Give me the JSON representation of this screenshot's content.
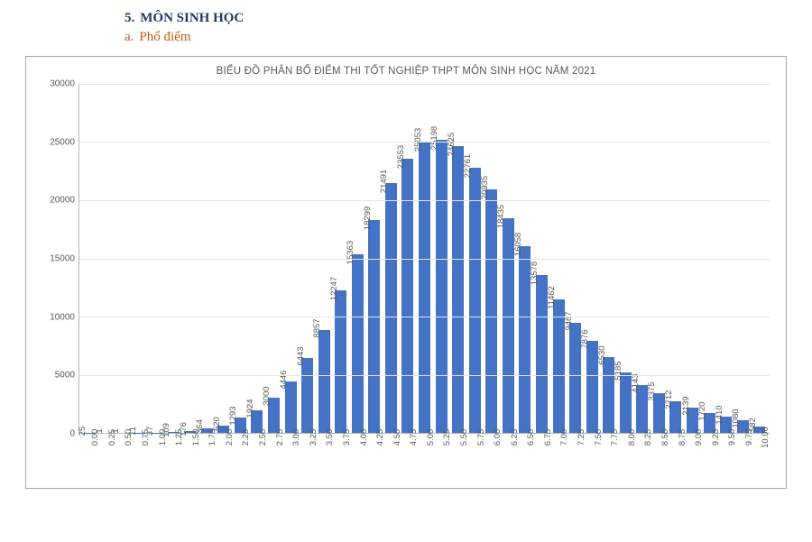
{
  "heading": {
    "number": "5.",
    "title": "MÔN SINH HỌC",
    "sub_letter": "a.",
    "sub_title": "Phổ điểm"
  },
  "chart": {
    "type": "bar",
    "title": "BIỂU ĐỒ PHÂN BỐ ĐIỂM THI TỐT NGHIỆP THPT MÔN SINH HỌC NĂM 2021",
    "title_fontsize": 11.5,
    "title_color": "#595959",
    "border_color": "#a6a6a6",
    "background_color": "#ffffff",
    "axis_line_color": "#b7b7b7",
    "grid_color": "#e6e6e6",
    "bar_color": "#4472c4",
    "bar_width_ratio": 0.7,
    "label_fontsize": 10,
    "value_label_fontsize": 9.5,
    "label_color": "#595959",
    "ylim": [
      0,
      30000
    ],
    "ytick_step": 5000,
    "y_ticks": [
      0,
      5000,
      10000,
      15000,
      20000,
      25000,
      30000
    ],
    "categories": [
      "0.00",
      "0.25",
      "0.50",
      "0.75",
      "1.00",
      "1.25",
      "1.50",
      "1.75",
      "2.00",
      "2.25",
      "2.50",
      "2.75",
      "3.00",
      "3.25",
      "3.50",
      "3.75",
      "4.00",
      "4.25",
      "4.50",
      "4.75",
      "5.00",
      "5.25",
      "5.50",
      "5.75",
      "6.00",
      "6.25",
      "6.50",
      "6.75",
      "7.00",
      "7.25",
      "7.50",
      "7.75",
      "8.00",
      "8.25",
      "8.50",
      "8.75",
      "9.00",
      "9.25",
      "9.50",
      "9.75",
      "10.00"
    ],
    "values": [
      25,
      1,
      1,
      11,
      37,
      109,
      176,
      364,
      620,
      1293,
      1924,
      3000,
      4446,
      6443,
      8857,
      12247,
      15363,
      18299,
      21491,
      23553,
      25053,
      25198,
      24625,
      22761,
      20935,
      18435,
      16058,
      13578,
      11462,
      9487,
      7876,
      6530,
      5185,
      4143,
      3375,
      2712,
      2139,
      1720,
      1410,
      1080,
      582
    ]
  }
}
